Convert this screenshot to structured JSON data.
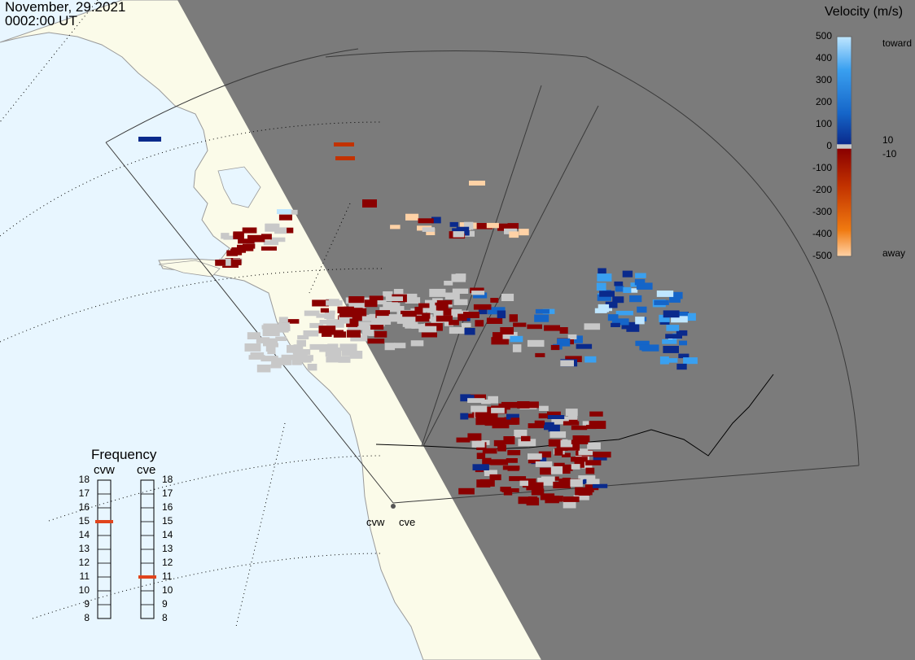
{
  "header": {
    "date": "November, 29.2021",
    "time": "0002:00 UT"
  },
  "colorbar": {
    "title": "Velocity (m/s)",
    "ticks": [
      "500",
      "400",
      "300",
      "200",
      "100",
      "0",
      "-100",
      "-200",
      "-300",
      "-400",
      "-500"
    ],
    "tick_values": [
      500,
      400,
      300,
      200,
      100,
      0,
      -100,
      -200,
      -300,
      -400,
      -500
    ],
    "toward_label": "toward",
    "away_label": "away",
    "pos_threshold_label": "10",
    "neg_threshold_label": "-10"
  },
  "frequency": {
    "title": "Frequency",
    "unit": "",
    "ticks": [
      "18",
      "17",
      "16",
      "15",
      "14",
      "13",
      "12",
      "11",
      "10",
      "9",
      "8"
    ],
    "tick_values": [
      18,
      17,
      16,
      15,
      14,
      13,
      12,
      11,
      10,
      9,
      8
    ],
    "radars": [
      {
        "name": "cvw",
        "frequency": 15
      },
      {
        "name": "cve",
        "frequency": 11
      }
    ],
    "marker_color": "#e0441c"
  },
  "sites": {
    "cvw": "cvw",
    "cve": "cve"
  },
  "colors": {
    "ocean": "#e8f6ff",
    "land": "#fbfbe9",
    "night": "#7b7b7b",
    "ground_scatter": "#c8c8c8",
    "toward_scale": [
      "#bfe6ff",
      "#3aa0f0",
      "#1565c8",
      "#0a2a8c"
    ],
    "away_scale": [
      "#8a0000",
      "#c23200",
      "#f07a10",
      "#ffd2a6"
    ]
  }
}
